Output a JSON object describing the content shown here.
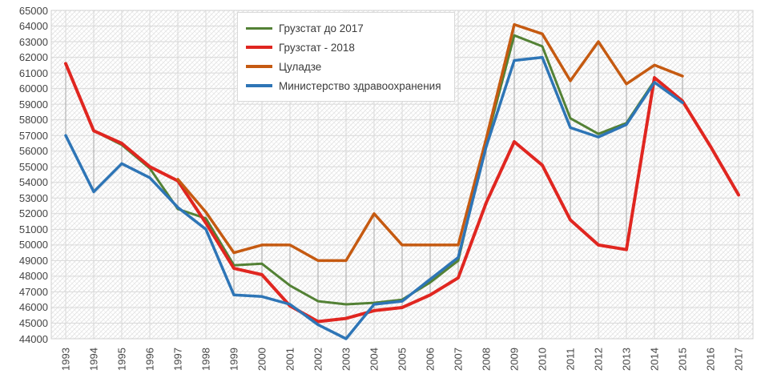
{
  "chart_data": {
    "type": "line",
    "title": "",
    "xlabel": "",
    "ylabel": "",
    "x": [
      1993,
      1994,
      1995,
      1996,
      1997,
      1998,
      1999,
      2000,
      2001,
      2002,
      2003,
      2004,
      2005,
      2006,
      2007,
      2008,
      2009,
      2010,
      2011,
      2012,
      2013,
      2014,
      2015,
      2016,
      2017
    ],
    "x_tick_labels": [
      "1993",
      "1994",
      "1995",
      "1996",
      "1997",
      "1998",
      "1999",
      "2000",
      "2001",
      "2002",
      "2003",
      "2004",
      "2005",
      "2006",
      "2007",
      "2008",
      "2009",
      "2010",
      "2011",
      "2012",
      "2013",
      "2014",
      "2015",
      "2016",
      "2017"
    ],
    "y_tick_labels": [
      "65000",
      "64000",
      "63000",
      "62000",
      "61000",
      "60000",
      "59000",
      "58000",
      "57000",
      "56000",
      "55000",
      "54000",
      "53000",
      "52000",
      "51000",
      "50000",
      "49000",
      "48000",
      "47000",
      "46000",
      "45000",
      "44000"
    ],
    "ylim": [
      44000,
      65000
    ],
    "ytick_step": 1000,
    "grid": true,
    "hatched_plot_background": true,
    "high_low_lines": true,
    "legend_position": "top-center",
    "series": [
      {
        "name": "Грузстат до 2017",
        "color": "#538135",
        "line_width": 3,
        "values": [
          61600,
          57300,
          56400,
          54900,
          52300,
          51700,
          48700,
          48800,
          47400,
          46400,
          46200,
          46300,
          46500,
          47600,
          49000,
          56600,
          63400,
          62700,
          58100,
          57100,
          57800,
          60500,
          null,
          null,
          null
        ]
      },
      {
        "name": "Грузстат - 2018",
        "color": "#e02620",
        "line_width": 4,
        "values": [
          61600,
          57300,
          56500,
          55000,
          54100,
          51400,
          48500,
          48100,
          46100,
          45100,
          45300,
          45800,
          46000,
          46800,
          47900,
          52700,
          56600,
          55100,
          51600,
          50000,
          49700,
          60700,
          59200,
          56300,
          53200
        ]
      },
      {
        "name": "Цуладзе",
        "color": "#c55a11",
        "line_width": 3.5,
        "values": [
          null,
          null,
          null,
          null,
          54200,
          52100,
          49500,
          50000,
          50000,
          49000,
          49000,
          52000,
          50000,
          50000,
          50000,
          56800,
          64100,
          63500,
          60500,
          63000,
          60300,
          61500,
          60800,
          null,
          null
        ]
      },
      {
        "name": "Министерство здравоохранения",
        "color": "#2e75b6",
        "line_width": 3.5,
        "values": [
          57000,
          53400,
          55200,
          54300,
          52400,
          51000,
          46800,
          46700,
          46200,
          44900,
          44000,
          46200,
          46400,
          47800,
          49200,
          56300,
          61800,
          62000,
          57500,
          56900,
          57700,
          60400,
          59100,
          null,
          null
        ]
      }
    ],
    "colors": {
      "gridline": "#d9d9d9",
      "high_low_line": "#a0a0a0",
      "axis_text": "#444444",
      "plot_border": "#d0d0d0",
      "hatch_main": "#e0e0e0",
      "hatch_cross": "#efefef"
    }
  }
}
